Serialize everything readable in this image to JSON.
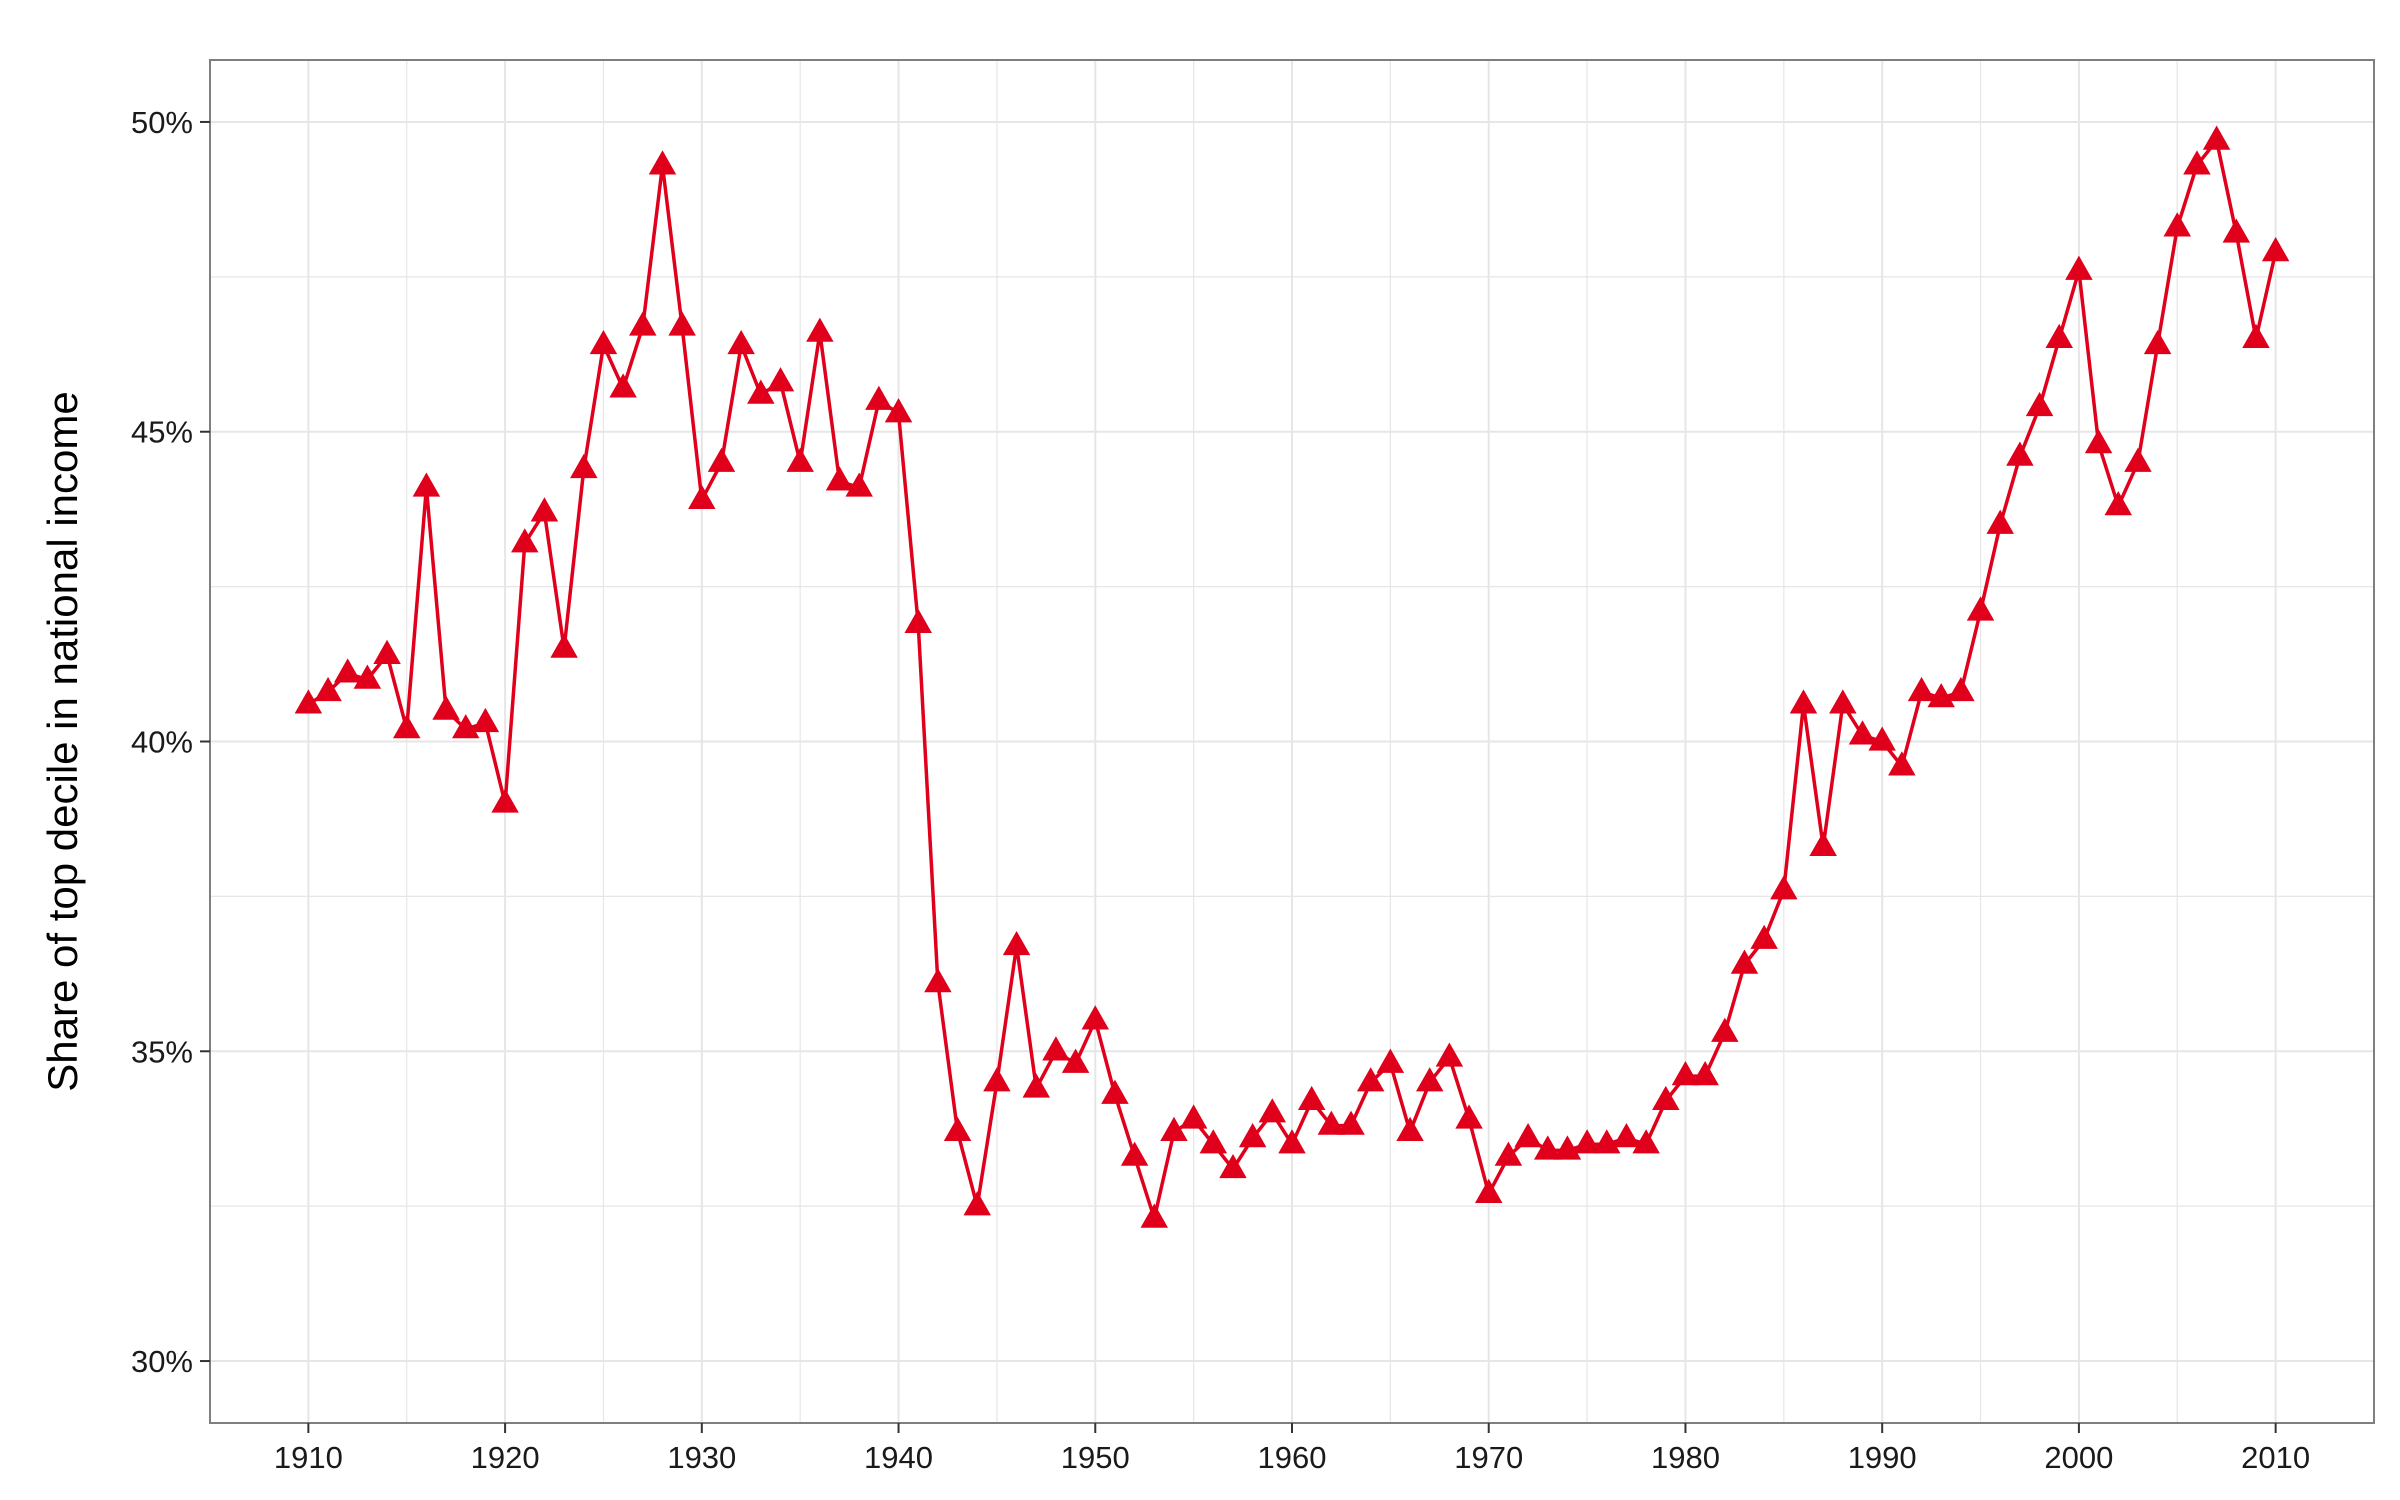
{
  "chart_data": {
    "type": "line",
    "title": "",
    "xlabel": "",
    "ylabel": "Share of top decile in national income",
    "xlim": [
      1905,
      2015
    ],
    "ylim": [
      0.29,
      0.51
    ],
    "x_ticks": [
      1910,
      1920,
      1930,
      1940,
      1950,
      1960,
      1970,
      1980,
      1990,
      2000,
      2010
    ],
    "x_tick_labels": [
      "1910",
      "1920",
      "1930",
      "1940",
      "1950",
      "1960",
      "1970",
      "1980",
      "1990",
      "2000",
      "2010"
    ],
    "y_ticks": [
      0.3,
      0.35,
      0.4,
      0.45,
      0.5
    ],
    "y_tick_labels": [
      "30%",
      "35%",
      "40%",
      "45%",
      "50%"
    ],
    "grid": true,
    "marker": "triangle",
    "colors": {
      "series": "#e0001b",
      "grid": "#e6e6e6",
      "panel_border": "#7f7f7f"
    },
    "series": [
      {
        "x": [
          1910,
          1911,
          1912,
          1913,
          1914,
          1915,
          1916,
          1917,
          1918,
          1919,
          1920,
          1921,
          1922,
          1923,
          1924,
          1925,
          1926,
          1927,
          1928,
          1929,
          1930,
          1931,
          1932,
          1933,
          1934,
          1935,
          1936,
          1937,
          1938,
          1939,
          1940,
          1941,
          1942,
          1943,
          1944,
          1945,
          1946,
          1947,
          1948,
          1949,
          1950,
          1951,
          1952,
          1953,
          1954,
          1955,
          1956,
          1957,
          1958,
          1959,
          1960,
          1961,
          1962,
          1963,
          1964,
          1965,
          1966,
          1967,
          1968,
          1969,
          1970,
          1971,
          1972,
          1973,
          1974,
          1975,
          1976,
          1977,
          1978,
          1979,
          1980,
          1981,
          1982,
          1983,
          1984,
          1985,
          1986,
          1987,
          1988,
          1989,
          1990,
          1991,
          1992,
          1993,
          1994,
          1995,
          1996,
          1997,
          1998,
          1999,
          2000,
          2001,
          2002,
          2003,
          2004,
          2005,
          2006,
          2007,
          2008,
          2009,
          2010
        ],
        "values": [
          0.406,
          0.408,
          0.411,
          0.41,
          0.414,
          0.402,
          0.441,
          0.405,
          0.402,
          0.403,
          0.39,
          0.432,
          0.437,
          0.415,
          0.444,
          0.464,
          0.457,
          0.467,
          0.493,
          0.467,
          0.439,
          0.445,
          0.464,
          0.456,
          0.458,
          0.445,
          0.466,
          0.442,
          0.441,
          0.455,
          0.453,
          0.419,
          0.361,
          0.337,
          0.325,
          0.345,
          0.367,
          0.344,
          0.35,
          0.348,
          0.355,
          0.343,
          0.333,
          0.323,
          0.337,
          0.339,
          0.335,
          0.331,
          0.336,
          0.34,
          0.335,
          0.342,
          0.338,
          0.338,
          0.345,
          0.348,
          0.337,
          0.345,
          0.349,
          0.339,
          0.327,
          0.333,
          0.336,
          0.334,
          0.334,
          0.335,
          0.335,
          0.336,
          0.335,
          0.342,
          0.346,
          0.346,
          0.353,
          0.364,
          0.368,
          0.376,
          0.406,
          0.383,
          0.406,
          0.401,
          0.4,
          0.396,
          0.408,
          0.407,
          0.408,
          0.421,
          0.435,
          0.446,
          0.454,
          0.465,
          0.476,
          0.448,
          0.438,
          0.445,
          0.464,
          0.483,
          0.493,
          0.497,
          0.482,
          0.465,
          0.479
        ]
      }
    ]
  }
}
